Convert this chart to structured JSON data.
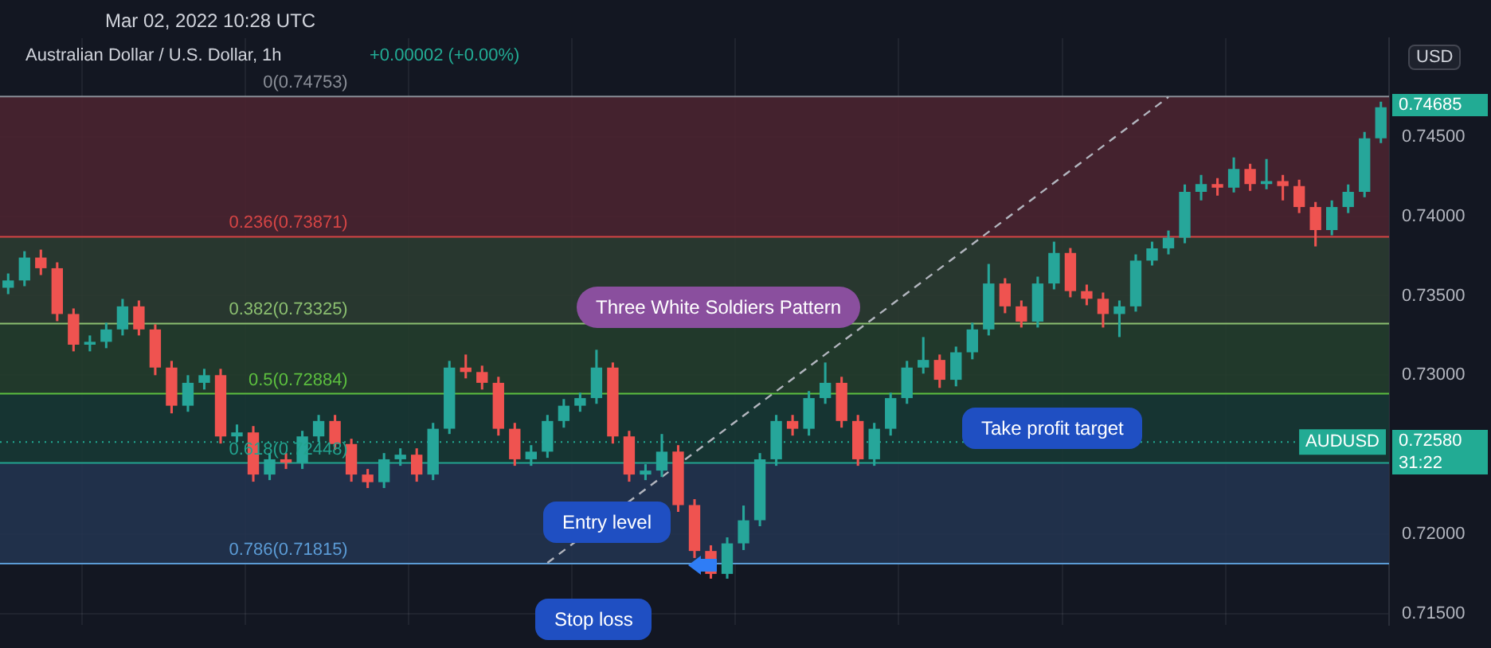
{
  "chart_data": {
    "type": "candlestick",
    "title": "Australian Dollar / U.S. Dollar, 1h",
    "subtitle": "+0.00002 (+0.00%)",
    "categories": [
      null,
      null,
      null,
      null,
      null,
      null,
      null,
      null,
      null,
      null,
      null,
      null,
      null,
      null,
      null,
      null,
      null,
      null,
      null,
      null,
      null,
      null,
      null,
      null,
      null,
      null,
      null,
      null,
      null,
      null,
      null,
      null,
      null,
      null,
      null,
      null,
      null,
      null,
      null,
      null,
      null,
      null,
      null,
      null,
      null,
      null,
      null,
      null,
      null,
      null,
      null,
      null,
      null,
      null,
      null,
      null,
      null,
      null,
      null,
      null,
      null,
      null,
      null,
      null,
      null,
      null,
      null,
      null,
      null,
      null,
      null,
      null,
      null,
      null,
      null,
      null,
      null,
      null,
      null,
      null,
      null,
      null,
      null,
      null,
      null
    ],
    "ohlc": [
      [
        0.7355,
        0.7364,
        0.7351,
        0.73596
      ],
      [
        0.73596,
        0.7378,
        0.7356,
        0.7374
      ],
      [
        0.7374,
        0.7379,
        0.7363,
        0.73673
      ],
      [
        0.73673,
        0.7371,
        0.7334,
        0.73385
      ],
      [
        0.73385,
        0.7342,
        0.7315,
        0.73192
      ],
      [
        0.73192,
        0.7325,
        0.7315,
        0.7321
      ],
      [
        0.7321,
        0.7333,
        0.7317,
        0.73288
      ],
      [
        0.73288,
        0.7348,
        0.7325,
        0.73433
      ],
      [
        0.73433,
        0.7347,
        0.7325,
        0.73288
      ],
      [
        0.73288,
        0.7332,
        0.73,
        0.73048
      ],
      [
        0.73048,
        0.7309,
        0.7276,
        0.72808
      ],
      [
        0.72808,
        0.73,
        0.7277,
        0.72952
      ],
      [
        0.72952,
        0.7304,
        0.7291,
        0.73
      ],
      [
        0.73,
        0.7304,
        0.7257,
        0.72615
      ],
      [
        0.72615,
        0.7269,
        0.7258,
        0.7264
      ],
      [
        0.7264,
        0.7268,
        0.7233,
        0.72375
      ],
      [
        0.72375,
        0.7251,
        0.7234,
        0.72471
      ],
      [
        0.72471,
        0.7251,
        0.7241,
        0.7245
      ],
      [
        0.7245,
        0.7265,
        0.7241,
        0.72615
      ],
      [
        0.72615,
        0.7275,
        0.7258,
        0.72712
      ],
      [
        0.72712,
        0.7275,
        0.7253,
        0.72567
      ],
      [
        0.72567,
        0.726,
        0.7233,
        0.72375
      ],
      [
        0.72375,
        0.7241,
        0.7229,
        0.72327
      ],
      [
        0.72327,
        0.7251,
        0.7229,
        0.72471
      ],
      [
        0.72471,
        0.7254,
        0.7243,
        0.725
      ],
      [
        0.725,
        0.7254,
        0.7233,
        0.72375
      ],
      [
        0.72375,
        0.727,
        0.7234,
        0.72663
      ],
      [
        0.72663,
        0.7309,
        0.7263,
        0.73048
      ],
      [
        0.73048,
        0.7313,
        0.7298,
        0.7302
      ],
      [
        0.7302,
        0.7306,
        0.7291,
        0.72952
      ],
      [
        0.72952,
        0.7299,
        0.7262,
        0.72663
      ],
      [
        0.72663,
        0.727,
        0.7243,
        0.72471
      ],
      [
        0.72471,
        0.7256,
        0.7243,
        0.72519
      ],
      [
        0.72519,
        0.7275,
        0.7248,
        0.72712
      ],
      [
        0.72712,
        0.7285,
        0.7267,
        0.72808
      ],
      [
        0.72808,
        0.7289,
        0.7277,
        0.72856
      ],
      [
        0.72856,
        0.7316,
        0.7282,
        0.73048
      ],
      [
        0.73048,
        0.7308,
        0.7257,
        0.72615
      ],
      [
        0.72615,
        0.7265,
        0.7233,
        0.72375
      ],
      [
        0.72375,
        0.7244,
        0.7234,
        0.724
      ],
      [
        0.724,
        0.7263,
        0.7236,
        0.72519
      ],
      [
        0.72519,
        0.7256,
        0.7214,
        0.72183
      ],
      [
        0.72183,
        0.7222,
        0.7185,
        0.71894
      ],
      [
        0.71894,
        0.7193,
        0.7172,
        0.7175
      ],
      [
        0.7175,
        0.7198,
        0.7172,
        0.71942
      ],
      [
        0.71942,
        0.7218,
        0.719,
        0.72087
      ],
      [
        0.72087,
        0.7251,
        0.7205,
        0.72471
      ],
      [
        0.72471,
        0.7275,
        0.7243,
        0.72712
      ],
      [
        0.72712,
        0.7275,
        0.7262,
        0.72663
      ],
      [
        0.72663,
        0.729,
        0.7262,
        0.72856
      ],
      [
        0.72856,
        0.7308,
        0.7282,
        0.72952
      ],
      [
        0.72952,
        0.7299,
        0.7267,
        0.72712
      ],
      [
        0.72712,
        0.7275,
        0.7243,
        0.72471
      ],
      [
        0.72471,
        0.727,
        0.7243,
        0.72663
      ],
      [
        0.72663,
        0.7289,
        0.7262,
        0.72856
      ],
      [
        0.72856,
        0.7309,
        0.7282,
        0.73048
      ],
      [
        0.73048,
        0.7324,
        0.7301,
        0.73096
      ],
      [
        0.73096,
        0.7313,
        0.7292,
        0.72971
      ],
      [
        0.72971,
        0.7318,
        0.7293,
        0.73144
      ],
      [
        0.73144,
        0.7333,
        0.731,
        0.73288
      ],
      [
        0.73288,
        0.737,
        0.7325,
        0.73577
      ],
      [
        0.73577,
        0.7361,
        0.7339,
        0.73433
      ],
      [
        0.73433,
        0.7347,
        0.733,
        0.73337
      ],
      [
        0.73337,
        0.7362,
        0.733,
        0.73577
      ],
      [
        0.73577,
        0.7384,
        0.7354,
        0.73769
      ],
      [
        0.73769,
        0.738,
        0.7349,
        0.73529
      ],
      [
        0.73529,
        0.7357,
        0.7344,
        0.73481
      ],
      [
        0.73481,
        0.7352,
        0.733,
        0.73385
      ],
      [
        0.73385,
        0.7347,
        0.7324,
        0.73433
      ],
      [
        0.73433,
        0.7376,
        0.734,
        0.73721
      ],
      [
        0.73721,
        0.7384,
        0.7369,
        0.73798
      ],
      [
        0.73798,
        0.7391,
        0.7376,
        0.73865
      ],
      [
        0.73865,
        0.742,
        0.7383,
        0.74154
      ],
      [
        0.74154,
        0.7426,
        0.741,
        0.74202
      ],
      [
        0.74202,
        0.7424,
        0.7413,
        0.7418
      ],
      [
        0.7418,
        0.7437,
        0.7415,
        0.74298
      ],
      [
        0.74298,
        0.7433,
        0.7416,
        0.74202
      ],
      [
        0.74202,
        0.7436,
        0.7417,
        0.74221
      ],
      [
        0.74221,
        0.7426,
        0.741,
        0.7419
      ],
      [
        0.7419,
        0.7423,
        0.7402,
        0.74058
      ],
      [
        0.74058,
        0.7409,
        0.7381,
        0.73913
      ],
      [
        0.73913,
        0.741,
        0.7388,
        0.74058
      ],
      [
        0.74058,
        0.742,
        0.7402,
        0.74154
      ],
      [
        0.74154,
        0.7453,
        0.7412,
        0.7449
      ],
      [
        0.7449,
        0.7472,
        0.7446,
        0.74685
      ]
    ],
    "colors": [
      "#26a69a",
      "#26a69a",
      "#ef5350",
      "#ef5350",
      "#ef5350",
      "#26a69a",
      "#26a69a",
      "#26a69a",
      "#ef5350",
      "#ef5350",
      "#ef5350",
      "#26a69a",
      "#26a69a",
      "#ef5350",
      "#26a69a",
      "#ef5350",
      "#26a69a",
      "#ef5350",
      "#26a69a",
      "#26a69a",
      "#ef5350",
      "#ef5350",
      "#ef5350",
      "#26a69a",
      "#26a69a",
      "#ef5350",
      "#26a69a",
      "#26a69a",
      "#ef5350",
      "#ef5350",
      "#ef5350",
      "#ef5350",
      "#26a69a",
      "#26a69a",
      "#26a69a",
      "#26a69a",
      "#26a69a",
      "#ef5350",
      "#ef5350",
      "#26a69a",
      "#26a69a",
      "#ef5350",
      "#ef5350",
      "#ef5350",
      "#26a69a",
      "#26a69a",
      "#26a69a",
      "#26a69a",
      "#ef5350",
      "#26a69a",
      "#26a69a",
      "#ef5350",
      "#ef5350",
      "#26a69a",
      "#26a69a",
      "#26a69a",
      "#26a69a",
      "#ef5350",
      "#26a69a",
      "#26a69a",
      "#26a69a",
      "#ef5350",
      "#ef5350",
      "#26a69a",
      "#26a69a",
      "#ef5350",
      "#ef5350",
      "#ef5350",
      "#26a69a",
      "#26a69a",
      "#26a69a",
      "#26a69a",
      "#26a69a",
      "#26a69a",
      "#ef5350",
      "#26a69a",
      "#ef5350",
      "#26a69a",
      "#ef5350",
      "#ef5350",
      "#ef5350",
      "#26a69a",
      "#26a69a",
      "#26a69a",
      "#26a69a"
    ],
    "series": [
      {
        "type": "line",
        "color": "#b2b5be",
        "line_style": "dashed",
        "values": [
          null,
          null,
          null,
          null,
          null,
          null,
          null,
          null,
          null,
          null,
          null,
          null,
          null,
          null,
          null,
          null,
          null,
          null,
          null,
          null,
          null,
          null,
          null,
          null,
          null,
          null,
          null,
          null,
          null,
          null,
          null,
          null,
          null,
          0.7182,
          null,
          null,
          null,
          null,
          null,
          null,
          null,
          null,
          null,
          null,
          null,
          null,
          null,
          null,
          null,
          null,
          null,
          null,
          null,
          null,
          null,
          null,
          null,
          null,
          null,
          null,
          null,
          null,
          null,
          null,
          null,
          null,
          null,
          null,
          null,
          null,
          null,
          0.7475,
          null,
          null,
          null,
          null,
          null,
          null,
          null,
          null,
          null,
          null,
          null,
          null,
          null
        ]
      }
    ],
    "ylim": [
      0.7143,
      0.7512
    ],
    "yticks": [
      {
        "value": 0.715,
        "label": "0.71500"
      },
      {
        "value": 0.72,
        "label": "0.72000"
      },
      {
        "value": 0.73,
        "label": "0.73000"
      },
      {
        "value": 0.735,
        "label": "0.73500"
      },
      {
        "value": 0.74,
        "label": "0.74000"
      },
      {
        "value": 0.745,
        "label": "0.74500"
      }
    ],
    "bands": [
      {
        "axis": "y",
        "from": 0.73871,
        "to": 0.74753,
        "color": "#4a2430"
      },
      {
        "axis": "y",
        "from": 0.73325,
        "to": 0.73871,
        "color": "#2b3b31"
      },
      {
        "axis": "y",
        "from": 0.72884,
        "to": 0.73325,
        "color": "#233d2c"
      },
      {
        "axis": "y",
        "from": 0.72448,
        "to": 0.72884,
        "color": "#173734"
      },
      {
        "axis": "y",
        "from": 0.71815,
        "to": 0.72448,
        "color": "#22334f"
      }
    ],
    "ref_lines": [
      {
        "axis": "y",
        "value": 0.74753,
        "label": "0(0.74753)",
        "color": "#8a8e97"
      },
      {
        "axis": "y",
        "value": 0.73871,
        "label": "0.236(0.73871)",
        "color": "#d64545"
      },
      {
        "axis": "y",
        "value": 0.73325,
        "label": "0.382(0.73325)",
        "color": "#8bbf70"
      },
      {
        "axis": "y",
        "value": 0.72884,
        "label": "0.5(0.72884)",
        "color": "#5cbf3f"
      },
      {
        "axis": "y",
        "value": 0.72448,
        "label": "0.618(0.72448)",
        "color": "#22a38f"
      },
      {
        "axis": "y",
        "value": 0.71815,
        "label": "0.786(0.71815)",
        "color": "#5b9bd5"
      },
      {
        "axis": "y",
        "value": 0.7258,
        "label": "AUDUSD",
        "color": "#22ab94",
        "line_style": "dotted"
      }
    ],
    "annotations": [
      "Mar 02, 2022 10:28 UTC",
      "Three White Soldiers Pattern",
      "Take profit target",
      "Entry level",
      "Stop loss",
      "USD",
      "31:22",
      "0.74685",
      "0.72580"
    ],
    "grid": true,
    "tick_labels": "y",
    "legend": false
  }
}
